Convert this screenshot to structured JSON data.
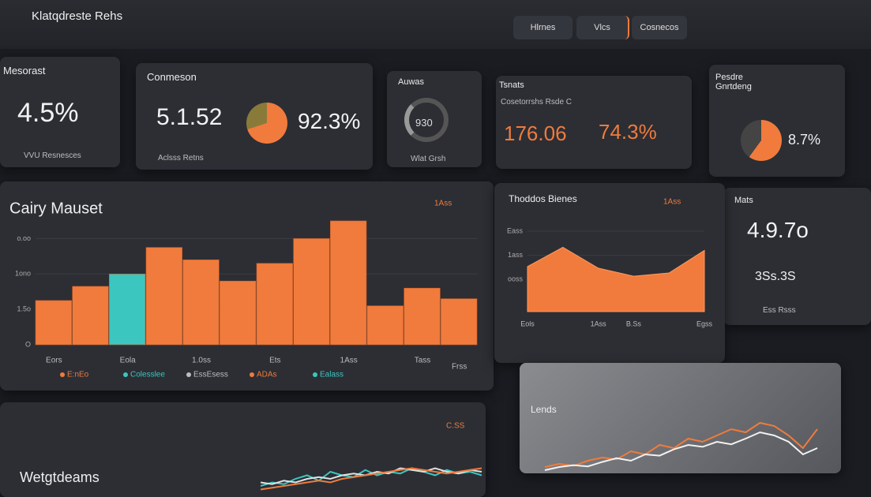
{
  "header": {
    "title": "Klatqdreste Rehs",
    "tabs": [
      "Hlrnes",
      "Vlcs",
      "Cosnecos"
    ]
  },
  "cards": [
    {
      "title": "Mesorast",
      "value": "4.5%",
      "footer": "VVU Resnesces"
    },
    {
      "title": "Conmeson",
      "value": "5.1.52",
      "value2": "92.3%",
      "footer": "Aclsss Retns"
    },
    {
      "title": "Auwas",
      "value": "930",
      "footer": "Wlat Grsh"
    },
    {
      "title": "Tsnats",
      "subtitle": "Cosetorrshs Rsde C",
      "value": "176.06",
      "value2": "74.3%"
    },
    {
      "title": "Pesdre Gnrtdeng",
      "value": "8.7%"
    },
    {
      "title": "Mats",
      "value": "4.9.7o",
      "value2": "3Ss.3S",
      "footer": "Ess Rsss"
    }
  ],
  "chart_data": [
    {
      "type": "bar",
      "title": "Cairy Mauset",
      "annotation": "1Ass",
      "categories": [
        "Eors",
        null,
        "Eola",
        null,
        "1.0ss",
        null,
        "Ets",
        null,
        "1Ass",
        null,
        "Tass",
        "Frss"
      ],
      "values": [
        25,
        33,
        40,
        55,
        48,
        36,
        46,
        60,
        70,
        22,
        32,
        26
      ],
      "colors": [
        "#f07b3c",
        "#f07b3c",
        "#3cc6c0",
        "#f07b3c",
        "#f07b3c",
        "#f07b3c",
        "#f07b3c",
        "#f07b3c",
        "#f07b3c",
        "#f07b3c",
        "#f07b3c",
        "#f07b3c"
      ],
      "ylim": [
        0,
        70
      ],
      "yticks": [
        {
          "value": 0,
          "label": "O"
        },
        {
          "value": 20,
          "label": "1.5o"
        },
        {
          "value": 40,
          "label": "1ono"
        },
        {
          "value": 60,
          "label": "o.oo"
        }
      ],
      "legend": [
        {
          "text": "E:nEo",
          "color": "#f07b3c"
        },
        {
          "text": "Colesslee",
          "color": "#3cc6c0"
        },
        {
          "text": "EssEsess",
          "color": "#bdbdbd"
        },
        {
          "text": "ADAs",
          "color": "#f07b3c"
        },
        {
          "text": "Ealass",
          "color": "#3cc6c0"
        }
      ]
    },
    {
      "type": "area",
      "title": "Thoddos Bienes",
      "annotation": "1Ass",
      "categories": [
        "Eols",
        null,
        "1Ass",
        "B.Ss",
        null,
        "Egss"
      ],
      "values": [
        28,
        40,
        27,
        22,
        24,
        38
      ],
      "color": "#f07b3c",
      "ylim": [
        0,
        50
      ],
      "yticks": [
        {
          "value": 20,
          "label": "ooss"
        },
        {
          "value": 35,
          "label": "1ass"
        },
        {
          "value": 50,
          "label": "Eass"
        }
      ]
    },
    {
      "type": "line",
      "title": "Wetgtdeams",
      "annotation": "C.SS",
      "ylim": [
        0,
        10
      ],
      "series": [
        {
          "color": "#3cc6c0",
          "values": [
            2,
            3,
            2.5,
            4,
            5,
            3.5,
            6,
            5,
            4.5,
            6.5,
            5,
            6,
            5.5,
            7,
            6,
            5,
            6.5,
            5.5,
            6,
            5
          ]
        },
        {
          "color": "#e0e0e0",
          "values": [
            3,
            2.5,
            3.5,
            3,
            4,
            4.5,
            4,
            5,
            5.5,
            5,
            6,
            5.5,
            7,
            6.5,
            6,
            7,
            6,
            5.5,
            6.5,
            6
          ]
        },
        {
          "color": "#f07b3c",
          "values": [
            1,
            1.5,
            2,
            2.5,
            3,
            3.5,
            3,
            4,
            4.5,
            5,
            5.5,
            6,
            6.5,
            7,
            6.5,
            6,
            5.5,
            6,
            6.5,
            7
          ]
        }
      ]
    },
    {
      "type": "line",
      "title": "Lends",
      "ylim": [
        0,
        10
      ],
      "series": [
        {
          "color": "#f07b3c",
          "values": [
            1,
            1.5,
            1.2,
            2,
            2.5,
            2.2,
            3.5,
            3,
            4.5,
            4,
            5.5,
            5,
            6,
            7,
            6.5,
            8,
            7.5,
            6,
            4,
            7
          ]
        },
        {
          "color": "#f2f2f2",
          "values": [
            0.5,
            1,
            1.3,
            1.1,
            1.8,
            2.4,
            2,
            3,
            2.8,
            3.8,
            4.5,
            4.2,
            5,
            4.6,
            5.5,
            6.5,
            6,
            5,
            3,
            4
          ]
        }
      ]
    }
  ]
}
